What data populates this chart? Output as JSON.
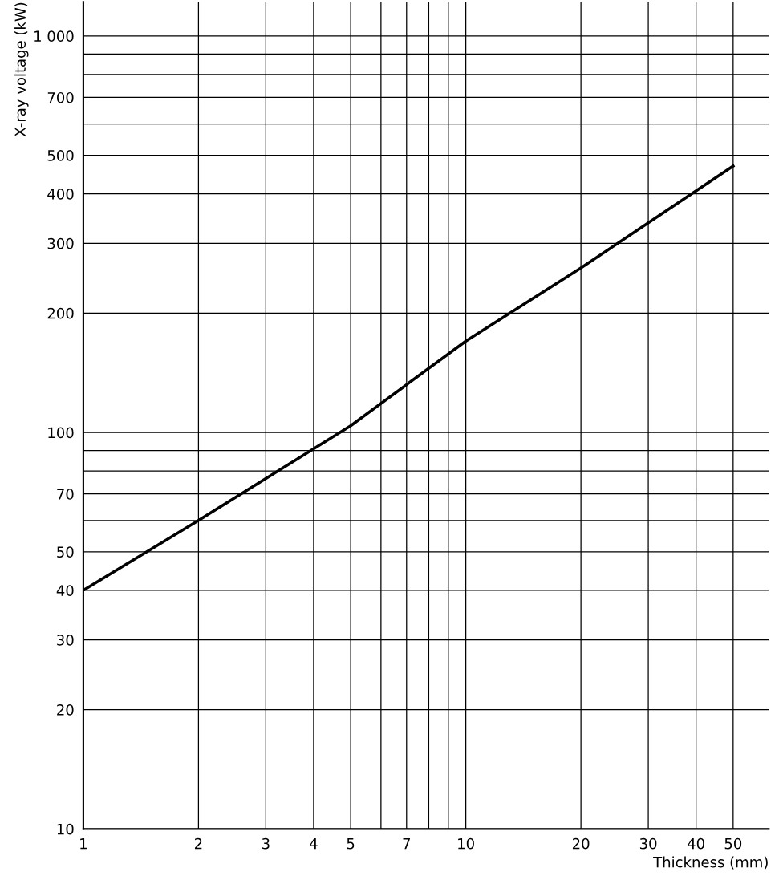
{
  "chart_data": {
    "type": "line",
    "xlabel": "Thickness (mm)",
    "ylabel": "X-ray voltage (kW)",
    "log": "xy",
    "x": [
      1,
      2,
      5,
      10,
      20,
      50
    ],
    "series": [
      {
        "color": "#000000",
        "values": [
          40,
          60,
          104,
          170,
          260,
          470
        ]
      }
    ],
    "xlim": [
      1,
      62
    ],
    "ylim": [
      10,
      1220
    ],
    "xticks": [
      1,
      2,
      3,
      4,
      5,
      {
        "value": 6,
        "label": null
      },
      7,
      {
        "value": 8,
        "label": null
      },
      {
        "value": 9,
        "label": null
      },
      10,
      20,
      30,
      40,
      50
    ],
    "yticks": [
      10,
      20,
      30,
      40,
      50,
      {
        "value": 60,
        "label": null
      },
      70,
      {
        "value": 80,
        "label": null
      },
      {
        "value": 90,
        "label": null
      },
      100,
      200,
      300,
      400,
      500,
      {
        "value": 600,
        "label": null
      },
      700,
      {
        "value": 800,
        "label": null
      },
      {
        "value": 900,
        "label": null
      },
      {
        "value": 1000,
        "label": "1 000"
      }
    ],
    "grid": true,
    "marker": "none",
    "line_style": "solid"
  }
}
